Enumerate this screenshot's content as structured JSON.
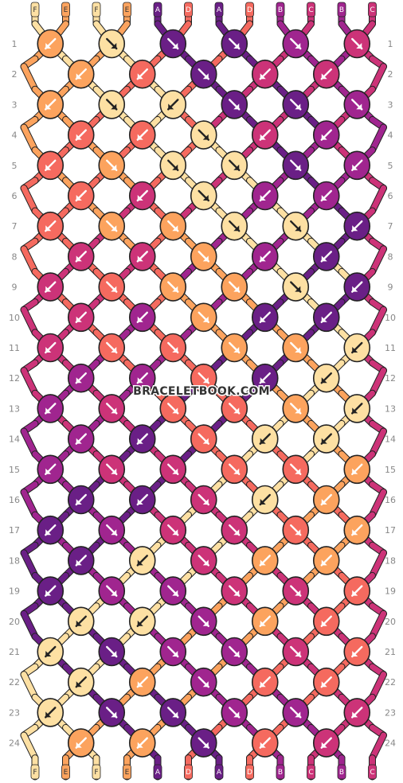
{
  "pattern": {
    "strands_top": [
      "F",
      "E",
      "F",
      "E",
      "A",
      "D",
      "A",
      "D",
      "B",
      "C",
      "B",
      "C"
    ],
    "strands_bottom": [
      "F",
      "E",
      "F",
      "E",
      "A",
      "D",
      "A",
      "D",
      "B",
      "C",
      "B",
      "C"
    ],
    "colors": {
      "A": "#6a1f86",
      "B": "#a0258f",
      "C": "#cc3378",
      "D": "#f56a5f",
      "E": "#fca35e",
      "F": "#fde0a3"
    },
    "row_labels": [
      "1",
      "2",
      "3",
      "4",
      "5",
      "6",
      "7",
      "8",
      "9",
      "10",
      "11",
      "12",
      "13",
      "14",
      "15",
      "16",
      "17",
      "18",
      "19",
      "20",
      "21",
      "22",
      "23",
      "24"
    ],
    "rows": [
      [
        {
          "c": "E",
          "d": "L"
        },
        {
          "c": "F",
          "d": "R"
        },
        {
          "c": "A",
          "d": "R"
        },
        {
          "c": "A",
          "d": "R"
        },
        {
          "c": "B",
          "d": "R"
        },
        {
          "c": "C",
          "d": "R"
        }
      ],
      [
        {
          "c": "E",
          "d": "L"
        },
        {
          "c": "D",
          "d": "L"
        },
        {
          "c": "A",
          "d": "R"
        },
        {
          "c": "C",
          "d": "L"
        },
        {
          "c": "C",
          "d": "L"
        }
      ],
      [
        {
          "c": "E",
          "d": "L"
        },
        {
          "c": "F",
          "d": "R"
        },
        {
          "c": "F",
          "d": "L"
        },
        {
          "c": "A",
          "d": "R"
        },
        {
          "c": "A",
          "d": "R"
        },
        {
          "c": "B",
          "d": "R"
        }
      ],
      [
        {
          "c": "D",
          "d": "L"
        },
        {
          "c": "D",
          "d": "L"
        },
        {
          "c": "F",
          "d": "R"
        },
        {
          "c": "C",
          "d": "L"
        },
        {
          "c": "B",
          "d": "L"
        }
      ],
      [
        {
          "c": "D",
          "d": "L"
        },
        {
          "c": "E",
          "d": "R"
        },
        {
          "c": "F",
          "d": "R"
        },
        {
          "c": "F",
          "d": "R"
        },
        {
          "c": "A",
          "d": "R"
        },
        {
          "c": "B",
          "d": "L"
        }
      ],
      [
        {
          "c": "D",
          "d": "L"
        },
        {
          "c": "C",
          "d": "L"
        },
        {
          "c": "F",
          "d": "R"
        },
        {
          "c": "B",
          "d": "L"
        },
        {
          "c": "B",
          "d": "L"
        }
      ],
      [
        {
          "c": "D",
          "d": "L"
        },
        {
          "c": "E",
          "d": "R"
        },
        {
          "c": "E",
          "d": "R"
        },
        {
          "c": "F",
          "d": "R"
        },
        {
          "c": "F",
          "d": "R"
        },
        {
          "c": "A",
          "d": "L"
        }
      ],
      [
        {
          "c": "C",
          "d": "L"
        },
        {
          "c": "C",
          "d": "L"
        },
        {
          "c": "E",
          "d": "R"
        },
        {
          "c": "B",
          "d": "L"
        },
        {
          "c": "A",
          "d": "L"
        }
      ],
      [
        {
          "c": "C",
          "d": "L"
        },
        {
          "c": "D",
          "d": "R"
        },
        {
          "c": "E",
          "d": "R"
        },
        {
          "c": "E",
          "d": "R"
        },
        {
          "c": "F",
          "d": "R"
        },
        {
          "c": "A",
          "d": "L"
        }
      ],
      [
        {
          "c": "C",
          "d": "L"
        },
        {
          "c": "B",
          "d": "L"
        },
        {
          "c": "E",
          "d": "R"
        },
        {
          "c": "A",
          "d": "L"
        },
        {
          "c": "A",
          "d": "L"
        }
      ],
      [
        {
          "c": "C",
          "d": "L"
        },
        {
          "c": "D",
          "d": "R"
        },
        {
          "c": "D",
          "d": "R"
        },
        {
          "c": "E",
          "d": "R"
        },
        {
          "c": "E",
          "d": "R"
        },
        {
          "c": "F",
          "d": "L"
        }
      ],
      [
        {
          "c": "B",
          "d": "L"
        },
        {
          "c": "B",
          "d": "L"
        },
        {
          "c": "D",
          "d": "R"
        },
        {
          "c": "A",
          "d": "L"
        },
        {
          "c": "F",
          "d": "L"
        }
      ],
      [
        {
          "c": "B",
          "d": "L"
        },
        {
          "c": "C",
          "d": "R"
        },
        {
          "c": "D",
          "d": "R"
        },
        {
          "c": "D",
          "d": "R"
        },
        {
          "c": "E",
          "d": "R"
        },
        {
          "c": "F",
          "d": "L"
        }
      ],
      [
        {
          "c": "B",
          "d": "L"
        },
        {
          "c": "A",
          "d": "L"
        },
        {
          "c": "D",
          "d": "R"
        },
        {
          "c": "F",
          "d": "L"
        },
        {
          "c": "F",
          "d": "L"
        }
      ],
      [
        {
          "c": "B",
          "d": "L"
        },
        {
          "c": "C",
          "d": "R"
        },
        {
          "c": "C",
          "d": "R"
        },
        {
          "c": "D",
          "d": "R"
        },
        {
          "c": "D",
          "d": "R"
        },
        {
          "c": "E",
          "d": "L"
        }
      ],
      [
        {
          "c": "A",
          "d": "L"
        },
        {
          "c": "A",
          "d": "L"
        },
        {
          "c": "C",
          "d": "R"
        },
        {
          "c": "F",
          "d": "L"
        },
        {
          "c": "E",
          "d": "L"
        }
      ],
      [
        {
          "c": "A",
          "d": "L"
        },
        {
          "c": "B",
          "d": "R"
        },
        {
          "c": "C",
          "d": "R"
        },
        {
          "c": "C",
          "d": "R"
        },
        {
          "c": "D",
          "d": "R"
        },
        {
          "c": "E",
          "d": "L"
        }
      ],
      [
        {
          "c": "A",
          "d": "L"
        },
        {
          "c": "F",
          "d": "L"
        },
        {
          "c": "C",
          "d": "R"
        },
        {
          "c": "E",
          "d": "L"
        },
        {
          "c": "E",
          "d": "L"
        }
      ],
      [
        {
          "c": "A",
          "d": "L"
        },
        {
          "c": "B",
          "d": "R"
        },
        {
          "c": "B",
          "d": "R"
        },
        {
          "c": "C",
          "d": "R"
        },
        {
          "c": "C",
          "d": "R"
        },
        {
          "c": "D",
          "d": "L"
        }
      ],
      [
        {
          "c": "F",
          "d": "L"
        },
        {
          "c": "F",
          "d": "L"
        },
        {
          "c": "B",
          "d": "R"
        },
        {
          "c": "E",
          "d": "L"
        },
        {
          "c": "D",
          "d": "L"
        }
      ],
      [
        {
          "c": "F",
          "d": "L"
        },
        {
          "c": "A",
          "d": "R"
        },
        {
          "c": "B",
          "d": "R"
        },
        {
          "c": "B",
          "d": "R"
        },
        {
          "c": "C",
          "d": "R"
        },
        {
          "c": "D",
          "d": "L"
        }
      ],
      [
        {
          "c": "F",
          "d": "L"
        },
        {
          "c": "E",
          "d": "L"
        },
        {
          "c": "B",
          "d": "R"
        },
        {
          "c": "D",
          "d": "L"
        },
        {
          "c": "D",
          "d": "L"
        }
      ],
      [
        {
          "c": "F",
          "d": "L"
        },
        {
          "c": "A",
          "d": "R"
        },
        {
          "c": "A",
          "d": "R"
        },
        {
          "c": "B",
          "d": "R"
        },
        {
          "c": "B",
          "d": "R"
        },
        {
          "c": "C",
          "d": "L"
        }
      ],
      [
        {
          "c": "E",
          "d": "L"
        },
        {
          "c": "E",
          "d": "L"
        },
        {
          "c": "A",
          "d": "R"
        },
        {
          "c": "D",
          "d": "L"
        },
        {
          "c": "C",
          "d": "L"
        }
      ]
    ]
  },
  "watermark": "BRACELETBOOK.COM"
}
